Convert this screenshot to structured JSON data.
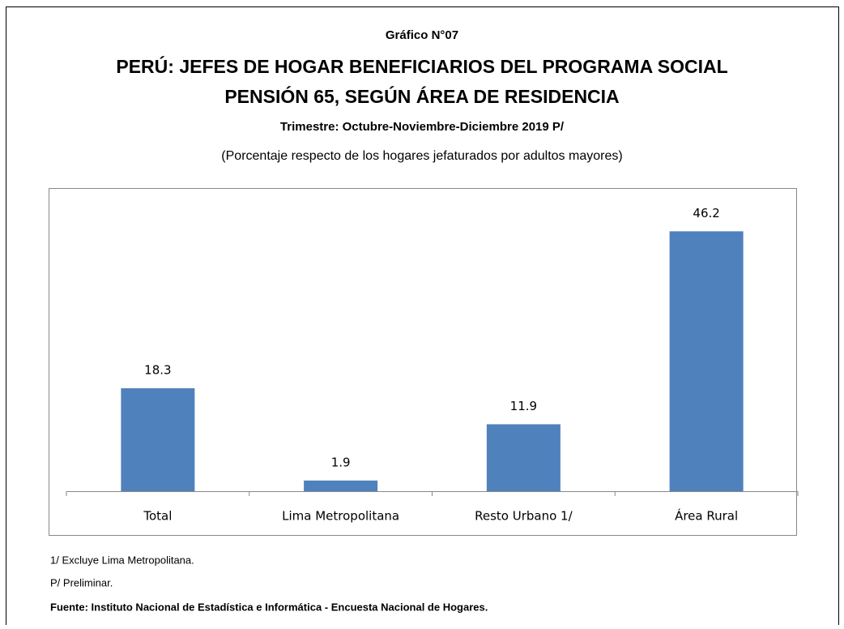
{
  "chart_data": {
    "type": "bar",
    "header": "Gráfico N°07",
    "title": [
      "PERÚ: JEFES DE HOGAR BENEFICIARIOS DEL PROGRAMA SOCIAL",
      "PENSIÓN 65, SEGÚN ÁREA DE RESIDENCIA"
    ],
    "subtitle": "Trimestre: Octubre-Noviembre-Diciembre 2019 P/",
    "note": "(Porcentaje respecto de los hogares jefaturados por adultos mayores)",
    "categories": [
      "Total",
      "Lima Metropolitana",
      "Resto Urbano 1/",
      "Área Rural"
    ],
    "values": [
      18.3,
      1.9,
      11.9,
      46.2
    ],
    "color": "#4f81bd",
    "ylim": [
      0,
      50
    ],
    "footnotes": [
      "1/ Excluye Lima Metropolitana.",
      "P/ Preliminar."
    ],
    "source": "Fuente: Instituto Nacional de Estadística e Informática - Encuesta Nacional de Hogares."
  }
}
